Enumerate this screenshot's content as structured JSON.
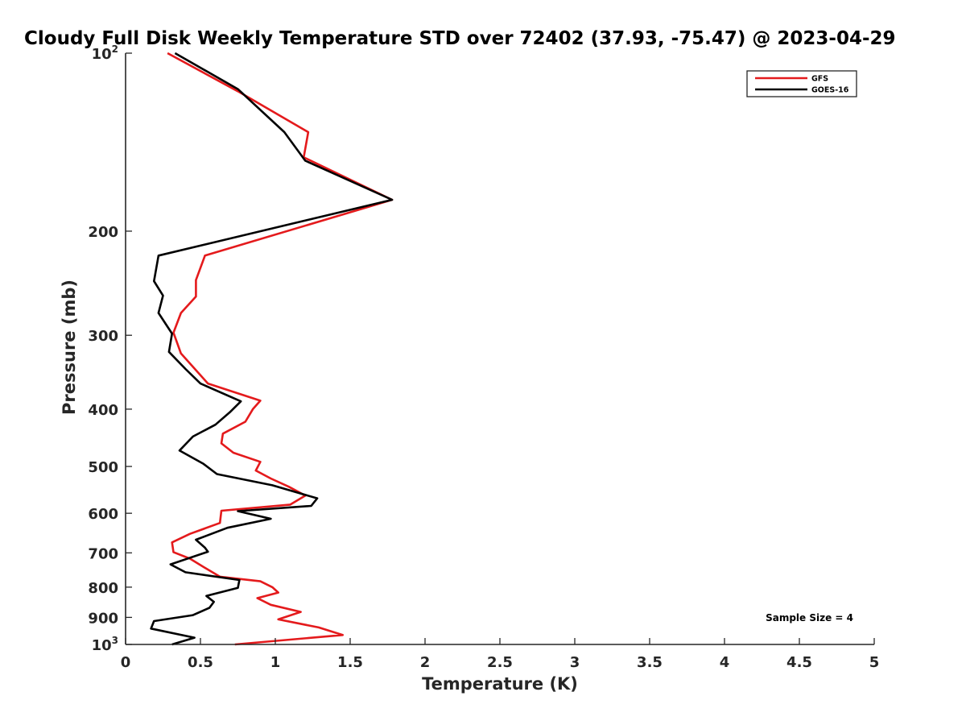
{
  "chart_data": {
    "type": "line",
    "title": "Cloudy Full Disk Weekly Temperature STD over 72402 (37.93, -75.47) @ 2023-04-29",
    "xlabel": "Temperature (K)",
    "ylabel": "Pressure (mb)",
    "xlim": [
      0,
      5
    ],
    "ylim": [
      100,
      1000
    ],
    "yscale": "log",
    "yreversed": true,
    "grid": false,
    "legend_position": "top-right",
    "x_ticks": [
      "0",
      "0.5",
      "1",
      "1.5",
      "2",
      "2.5",
      "3",
      "3.5",
      "4",
      "4.5",
      "5"
    ],
    "y_ticks": [
      {
        "value": 100,
        "label": "10",
        "sup": "2"
      },
      {
        "value": 200,
        "label": "200",
        "sup": ""
      },
      {
        "value": 300,
        "label": "300",
        "sup": ""
      },
      {
        "value": 400,
        "label": "400",
        "sup": ""
      },
      {
        "value": 500,
        "label": "500",
        "sup": ""
      },
      {
        "value": 600,
        "label": "600",
        "sup": ""
      },
      {
        "value": 700,
        "label": "700",
        "sup": ""
      },
      {
        "value": 800,
        "label": "800",
        "sup": ""
      },
      {
        "value": 900,
        "label": "900",
        "sup": ""
      },
      {
        "value": 1000,
        "label": "10",
        "sup": "3"
      }
    ],
    "series": [
      {
        "name": "GFS",
        "color": "#e41a1c",
        "points": [
          [
            0.28,
            100
          ],
          [
            0.75,
            116
          ],
          [
            1.22,
            136
          ],
          [
            1.19,
            150
          ],
          [
            1.78,
            177
          ],
          [
            0.53,
            220
          ],
          [
            0.47,
            242
          ],
          [
            0.47,
            258
          ],
          [
            0.37,
            275
          ],
          [
            0.32,
            297
          ],
          [
            0.37,
            322
          ],
          [
            0.55,
            362
          ],
          [
            0.9,
            387
          ],
          [
            0.85,
            400
          ],
          [
            0.8,
            420
          ],
          [
            0.65,
            440
          ],
          [
            0.64,
            457
          ],
          [
            0.72,
            474
          ],
          [
            0.9,
            491
          ],
          [
            0.87,
            508
          ],
          [
            0.97,
            524
          ],
          [
            1.09,
            541
          ],
          [
            1.2,
            560
          ],
          [
            1.1,
            580
          ],
          [
            0.64,
            594
          ],
          [
            0.63,
            623
          ],
          [
            0.43,
            650
          ],
          [
            0.31,
            672
          ],
          [
            0.32,
            698
          ],
          [
            0.43,
            716
          ],
          [
            0.53,
            742
          ],
          [
            0.63,
            768
          ],
          [
            0.9,
            782
          ],
          [
            0.98,
            800
          ],
          [
            1.02,
            817
          ],
          [
            0.88,
            835
          ],
          [
            0.97,
            857
          ],
          [
            1.17,
            881
          ],
          [
            1.02,
            907
          ],
          [
            1.29,
            936
          ],
          [
            1.45,
            964
          ],
          [
            0.73,
            1000
          ]
        ]
      },
      {
        "name": "GOES-16",
        "color": "#000000",
        "points": [
          [
            0.33,
            100
          ],
          [
            0.75,
            115
          ],
          [
            1.06,
            136
          ],
          [
            1.2,
            152
          ],
          [
            1.78,
            177
          ],
          [
            0.22,
            220
          ],
          [
            0.19,
            243
          ],
          [
            0.25,
            257
          ],
          [
            0.22,
            275
          ],
          [
            0.31,
            298
          ],
          [
            0.29,
            320
          ],
          [
            0.4,
            342
          ],
          [
            0.5,
            362
          ],
          [
            0.77,
            388
          ],
          [
            0.7,
            404
          ],
          [
            0.6,
            425
          ],
          [
            0.45,
            445
          ],
          [
            0.36,
            470
          ],
          [
            0.52,
            495
          ],
          [
            0.61,
            515
          ],
          [
            0.98,
            538
          ],
          [
            1.28,
            566
          ],
          [
            1.24,
            583
          ],
          [
            0.75,
            595
          ],
          [
            0.97,
            613
          ],
          [
            0.68,
            635
          ],
          [
            0.47,
            665
          ],
          [
            0.53,
            686
          ],
          [
            0.55,
            697
          ],
          [
            0.3,
            732
          ],
          [
            0.4,
            755
          ],
          [
            0.76,
            778
          ],
          [
            0.75,
            802
          ],
          [
            0.54,
            828
          ],
          [
            0.59,
            847
          ],
          [
            0.56,
            867
          ],
          [
            0.45,
            892
          ],
          [
            0.19,
            913
          ],
          [
            0.17,
            940
          ],
          [
            0.46,
            974
          ],
          [
            0.31,
            1000
          ]
        ]
      }
    ],
    "annotations": [
      {
        "text": "Sample Size = 4",
        "position": "bottom-right"
      }
    ]
  }
}
